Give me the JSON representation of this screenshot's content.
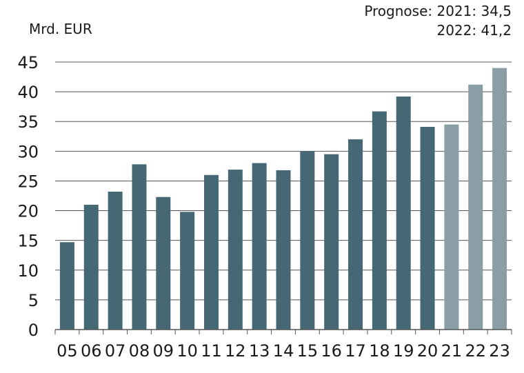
{
  "chart_data": {
    "type": "bar",
    "ylabel": "Mrd. EUR",
    "categories": [
      "05",
      "06",
      "07",
      "08",
      "09",
      "10",
      "11",
      "12",
      "13",
      "14",
      "15",
      "16",
      "17",
      "18",
      "19",
      "20",
      "21",
      "22",
      "23"
    ],
    "values": [
      14.7,
      21.0,
      23.2,
      27.8,
      22.3,
      19.8,
      26.0,
      26.9,
      28.0,
      26.8,
      30.0,
      29.5,
      32.0,
      36.7,
      39.2,
      34.1,
      34.5,
      41.2,
      44.0
    ],
    "forecast_from_index": 16,
    "ylim": [
      0,
      45
    ],
    "yticks": [
      0,
      5,
      10,
      15,
      20,
      25,
      30,
      35,
      40,
      45
    ],
    "grid": true,
    "colors": {
      "actual": "#456874",
      "forecast": "#8a9ea5",
      "grid": "#555555",
      "axis": "#555555"
    },
    "annotations": [
      "Prognose: 2021: 34,5",
      "2022: 41,2"
    ]
  }
}
